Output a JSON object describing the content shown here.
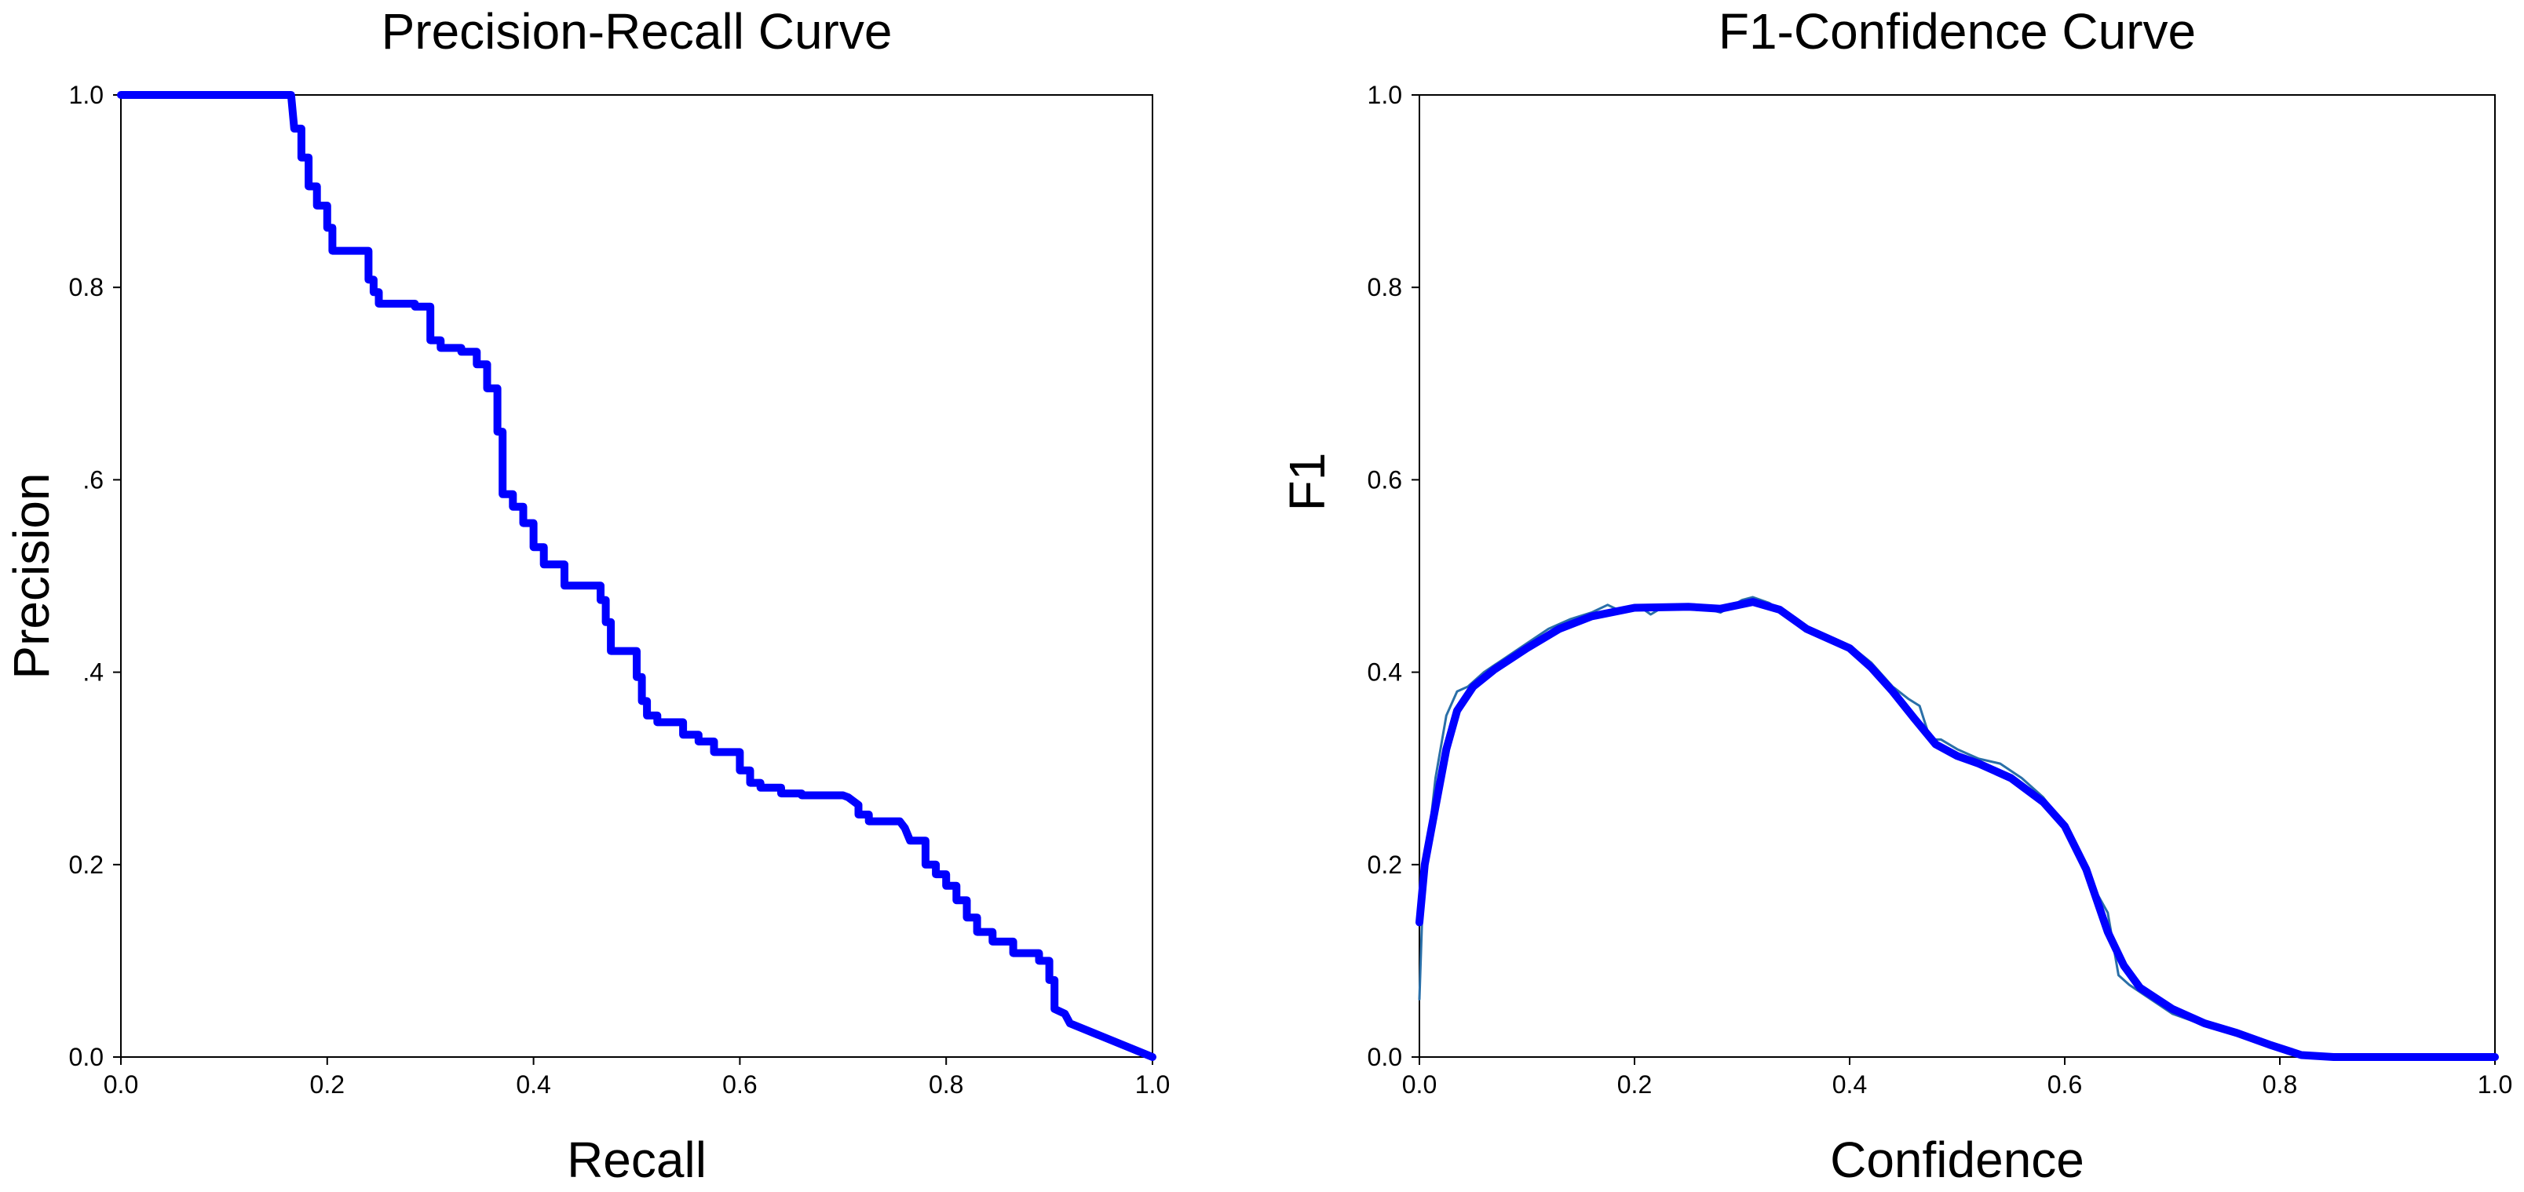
{
  "chart_data": [
    {
      "type": "line",
      "title": "Precision-Recall Curve",
      "xlabel": "Recall",
      "ylabel": "Precision",
      "xlim": [
        0,
        1
      ],
      "ylim": [
        0,
        1
      ],
      "xticks": [
        "0.0",
        "0.2",
        "0.4",
        "0.6",
        "0.8",
        "1.0"
      ],
      "yticks": [
        "0.0",
        "0.2",
        ".4",
        ".6",
        "0.8",
        "1.0"
      ],
      "grid": false,
      "series": [
        {
          "color": "#0000ff",
          "points": [
            [
              0.0,
              1.0
            ],
            [
              0.165,
              1.0
            ],
            [
              0.168,
              0.965
            ],
            [
              0.175,
              0.965
            ],
            [
              0.175,
              0.935
            ],
            [
              0.182,
              0.935
            ],
            [
              0.182,
              0.905
            ],
            [
              0.19,
              0.905
            ],
            [
              0.19,
              0.885
            ],
            [
              0.2,
              0.885
            ],
            [
              0.2,
              0.862
            ],
            [
              0.205,
              0.862
            ],
            [
              0.205,
              0.838
            ],
            [
              0.24,
              0.838
            ],
            [
              0.24,
              0.808
            ],
            [
              0.245,
              0.808
            ],
            [
              0.245,
              0.795
            ],
            [
              0.25,
              0.795
            ],
            [
              0.25,
              0.783
            ],
            [
              0.285,
              0.783
            ],
            [
              0.285,
              0.78
            ],
            [
              0.3,
              0.78
            ],
            [
              0.3,
              0.745
            ],
            [
              0.31,
              0.745
            ],
            [
              0.31,
              0.737
            ],
            [
              0.33,
              0.737
            ],
            [
              0.33,
              0.733
            ],
            [
              0.345,
              0.733
            ],
            [
              0.345,
              0.72
            ],
            [
              0.355,
              0.72
            ],
            [
              0.355,
              0.695
            ],
            [
              0.365,
              0.695
            ],
            [
              0.365,
              0.65
            ],
            [
              0.37,
              0.65
            ],
            [
              0.37,
              0.585
            ],
            [
              0.38,
              0.585
            ],
            [
              0.38,
              0.572
            ],
            [
              0.39,
              0.572
            ],
            [
              0.39,
              0.555
            ],
            [
              0.4,
              0.555
            ],
            [
              0.4,
              0.53
            ],
            [
              0.41,
              0.53
            ],
            [
              0.41,
              0.512
            ],
            [
              0.43,
              0.512
            ],
            [
              0.43,
              0.49
            ],
            [
              0.465,
              0.49
            ],
            [
              0.465,
              0.475
            ],
            [
              0.47,
              0.475
            ],
            [
              0.47,
              0.452
            ],
            [
              0.475,
              0.452
            ],
            [
              0.475,
              0.422
            ],
            [
              0.5,
              0.422
            ],
            [
              0.5,
              0.395
            ],
            [
              0.505,
              0.395
            ],
            [
              0.505,
              0.37
            ],
            [
              0.51,
              0.37
            ],
            [
              0.51,
              0.355
            ],
            [
              0.52,
              0.355
            ],
            [
              0.52,
              0.348
            ],
            [
              0.545,
              0.348
            ],
            [
              0.545,
              0.335
            ],
            [
              0.56,
              0.335
            ],
            [
              0.56,
              0.328
            ],
            [
              0.575,
              0.328
            ],
            [
              0.575,
              0.317
            ],
            [
              0.6,
              0.317
            ],
            [
              0.6,
              0.298
            ],
            [
              0.61,
              0.298
            ],
            [
              0.61,
              0.285
            ],
            [
              0.62,
              0.285
            ],
            [
              0.62,
              0.28
            ],
            [
              0.64,
              0.28
            ],
            [
              0.64,
              0.274
            ],
            [
              0.66,
              0.274
            ],
            [
              0.66,
              0.272
            ],
            [
              0.7,
              0.272
            ],
            [
              0.705,
              0.27
            ],
            [
              0.715,
              0.262
            ],
            [
              0.715,
              0.252
            ],
            [
              0.725,
              0.252
            ],
            [
              0.725,
              0.245
            ],
            [
              0.755,
              0.245
            ],
            [
              0.76,
              0.238
            ],
            [
              0.765,
              0.225
            ],
            [
              0.78,
              0.225
            ],
            [
              0.78,
              0.2
            ],
            [
              0.79,
              0.2
            ],
            [
              0.79,
              0.19
            ],
            [
              0.8,
              0.19
            ],
            [
              0.8,
              0.178
            ],
            [
              0.81,
              0.178
            ],
            [
              0.81,
              0.163
            ],
            [
              0.82,
              0.163
            ],
            [
              0.82,
              0.145
            ],
            [
              0.83,
              0.145
            ],
            [
              0.83,
              0.13
            ],
            [
              0.845,
              0.13
            ],
            [
              0.845,
              0.12
            ],
            [
              0.865,
              0.12
            ],
            [
              0.865,
              0.108
            ],
            [
              0.89,
              0.108
            ],
            [
              0.89,
              0.1
            ],
            [
              0.9,
              0.1
            ],
            [
              0.9,
              0.08
            ],
            [
              0.905,
              0.08
            ],
            [
              0.905,
              0.05
            ],
            [
              0.915,
              0.045
            ],
            [
              0.92,
              0.035
            ],
            [
              1.0,
              0.0
            ]
          ]
        }
      ]
    },
    {
      "type": "line",
      "title": "F1-Confidence Curve",
      "xlabel": "Confidence",
      "ylabel": "F1",
      "xlim": [
        0,
        1
      ],
      "ylim": [
        0,
        1
      ],
      "xticks": [
        "0.0",
        "0.2",
        "0.4",
        "0.6",
        "0.8",
        "1.0"
      ],
      "yticks": [
        "0.0",
        "0.2",
        "0.4",
        "0.6",
        "0.8",
        "1.0"
      ],
      "grid": false,
      "series": [
        {
          "color": "#2a6fa8",
          "width": "thin",
          "points": [
            [
              0.0,
              0.06
            ],
            [
              0.003,
              0.16
            ],
            [
              0.008,
              0.22
            ],
            [
              0.015,
              0.29
            ],
            [
              0.025,
              0.355
            ],
            [
              0.035,
              0.38
            ],
            [
              0.045,
              0.385
            ],
            [
              0.06,
              0.4
            ],
            [
              0.08,
              0.415
            ],
            [
              0.1,
              0.43
            ],
            [
              0.12,
              0.445
            ],
            [
              0.14,
              0.455
            ],
            [
              0.16,
              0.462
            ],
            [
              0.175,
              0.47
            ],
            [
              0.19,
              0.462
            ],
            [
              0.205,
              0.468
            ],
            [
              0.215,
              0.46
            ],
            [
              0.23,
              0.47
            ],
            [
              0.26,
              0.468
            ],
            [
              0.28,
              0.462
            ],
            [
              0.3,
              0.475
            ],
            [
              0.31,
              0.478
            ],
            [
              0.325,
              0.472
            ],
            [
              0.34,
              0.462
            ],
            [
              0.355,
              0.448
            ],
            [
              0.37,
              0.438
            ],
            [
              0.4,
              0.428
            ],
            [
              0.42,
              0.41
            ],
            [
              0.44,
              0.385
            ],
            [
              0.455,
              0.372
            ],
            [
              0.465,
              0.365
            ],
            [
              0.475,
              0.33
            ],
            [
              0.485,
              0.33
            ],
            [
              0.5,
              0.32
            ],
            [
              0.52,
              0.31
            ],
            [
              0.54,
              0.305
            ],
            [
              0.56,
              0.29
            ],
            [
              0.58,
              0.27
            ],
            [
              0.6,
              0.24
            ],
            [
              0.62,
              0.19
            ],
            [
              0.64,
              0.15
            ],
            [
              0.65,
              0.085
            ],
            [
              0.66,
              0.075
            ],
            [
              0.68,
              0.06
            ],
            [
              0.7,
              0.045
            ],
            [
              0.73,
              0.033
            ],
            [
              0.76,
              0.024
            ],
            [
              0.79,
              0.012
            ],
            [
              0.81,
              0.004
            ],
            [
              0.83,
              0.001
            ],
            [
              0.9,
              0.0
            ],
            [
              1.0,
              0.0
            ]
          ]
        },
        {
          "color": "#0000ff",
          "width": "thick",
          "points": [
            [
              0.0,
              0.14
            ],
            [
              0.005,
              0.2
            ],
            [
              0.015,
              0.26
            ],
            [
              0.025,
              0.32
            ],
            [
              0.035,
              0.36
            ],
            [
              0.05,
              0.385
            ],
            [
              0.07,
              0.403
            ],
            [
              0.1,
              0.425
            ],
            [
              0.13,
              0.445
            ],
            [
              0.16,
              0.458
            ],
            [
              0.2,
              0.467
            ],
            [
              0.25,
              0.468
            ],
            [
              0.28,
              0.466
            ],
            [
              0.31,
              0.473
            ],
            [
              0.335,
              0.465
            ],
            [
              0.36,
              0.445
            ],
            [
              0.38,
              0.435
            ],
            [
              0.4,
              0.425
            ],
            [
              0.42,
              0.405
            ],
            [
              0.44,
              0.38
            ],
            [
              0.46,
              0.352
            ],
            [
              0.48,
              0.325
            ],
            [
              0.5,
              0.313
            ],
            [
              0.52,
              0.305
            ],
            [
              0.55,
              0.29
            ],
            [
              0.58,
              0.265
            ],
            [
              0.6,
              0.24
            ],
            [
              0.62,
              0.195
            ],
            [
              0.64,
              0.13
            ],
            [
              0.655,
              0.095
            ],
            [
              0.67,
              0.072
            ],
            [
              0.7,
              0.05
            ],
            [
              0.73,
              0.035
            ],
            [
              0.76,
              0.025
            ],
            [
              0.79,
              0.013
            ],
            [
              0.82,
              0.002
            ],
            [
              0.85,
              0.0
            ],
            [
              1.0,
              0.0
            ]
          ]
        }
      ]
    }
  ]
}
